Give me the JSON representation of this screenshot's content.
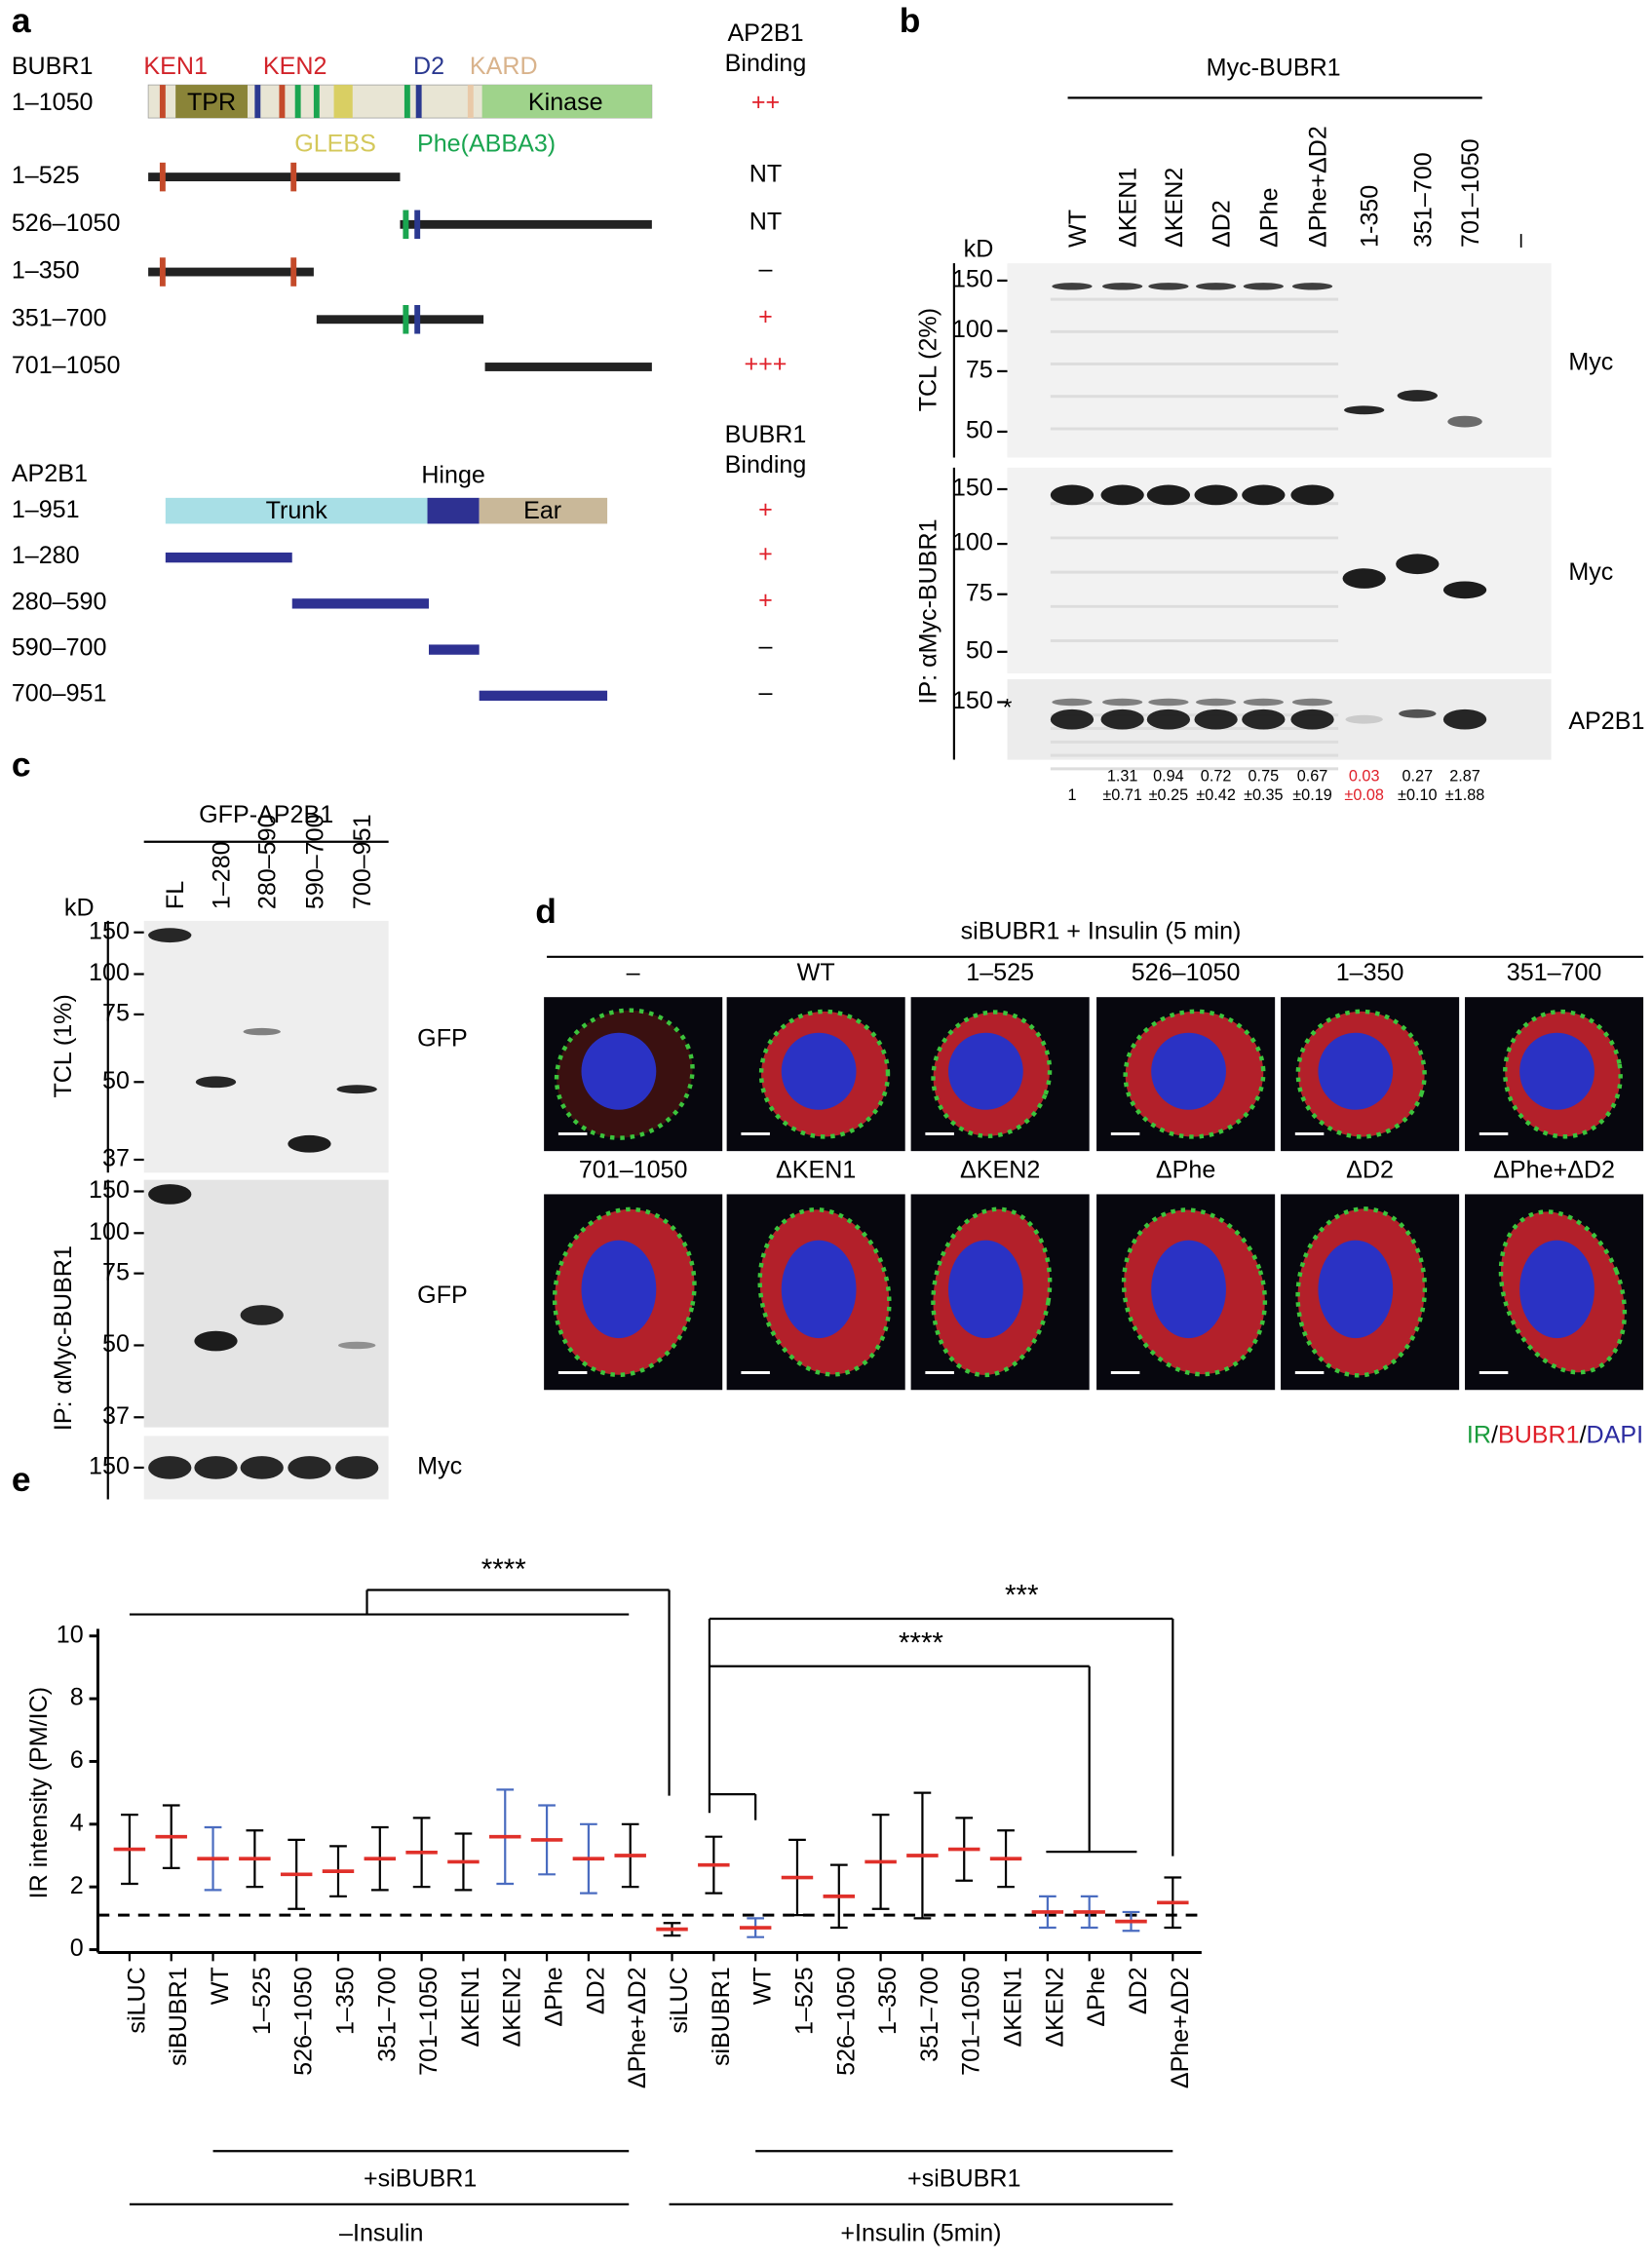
{
  "panel_a": {
    "label": "a",
    "bubr1": {
      "name": "BUBR1",
      "range": "1–1050",
      "domains": [
        "KEN1",
        "KEN2",
        "D2",
        "KARD",
        "TPR",
        "Kinase",
        "GLEBS",
        "Phe(ABBA3)"
      ],
      "binding_header": [
        "AP2B1",
        "Binding"
      ],
      "binding": "++",
      "fragments": [
        {
          "label": "1–525",
          "binding": "NT"
        },
        {
          "label": "526–1050",
          "binding": "NT"
        },
        {
          "label": "1–350",
          "binding": "–"
        },
        {
          "label": "351–700",
          "binding": "+"
        },
        {
          "label": "701–1050",
          "binding": "+++"
        }
      ]
    },
    "ap2b1": {
      "name": "AP2B1",
      "range": "1–951",
      "domains": [
        "Trunk",
        "Hinge",
        "Ear"
      ],
      "binding_header": [
        "BUBR1",
        "Binding"
      ],
      "binding": "+",
      "fragments": [
        {
          "label": "1–280",
          "binding": "+"
        },
        {
          "label": "280–590",
          "binding": "+"
        },
        {
          "label": "590–700",
          "binding": "–"
        },
        {
          "label": "700–951",
          "binding": "–"
        }
      ]
    }
  },
  "panel_b": {
    "label": "b",
    "construct": "Myc-BUBR1",
    "kd": "kD",
    "lanes": [
      "WT",
      "ΔKEN1",
      "ΔKEN2",
      "ΔD2",
      "ΔPhe",
      "ΔPhe+ΔD2",
      "1-350",
      "351–700",
      "701–1050",
      "–"
    ],
    "blots": [
      {
        "markers": [
          150,
          100,
          75,
          50
        ],
        "antibody": "Myc"
      },
      {
        "markers": [
          150,
          100,
          75,
          50
        ],
        "antibody": "Myc"
      },
      {
        "markers": [
          150
        ],
        "antibody": "AP2B1"
      }
    ],
    "sides": [
      "TCL (2%)",
      "IP: αMyc-BUBR1"
    ],
    "asterisk": "*",
    "quant": [
      [
        "1"
      ],
      [
        "1.31",
        "±0.71"
      ],
      [
        "0.94",
        "±0.25"
      ],
      [
        "0.72",
        "±0.42"
      ],
      [
        "0.75",
        "±0.35"
      ],
      [
        "0.67",
        "±0.19"
      ],
      [
        "0.03",
        "±0.08"
      ],
      [
        "0.27",
        "±0.10"
      ],
      [
        "2.87",
        "±1.88"
      ]
    ]
  },
  "panel_c": {
    "label": "c",
    "construct": "GFP-AP2B1",
    "kd": "kD",
    "lanes": [
      "FL",
      "1–280",
      "280–590",
      "590–700",
      "700–951"
    ],
    "blots": [
      {
        "markers": [
          150,
          100,
          75,
          50,
          37
        ],
        "antibody": "GFP"
      },
      {
        "markers": [
          150,
          100,
          75,
          50,
          37
        ],
        "antibody": "GFP"
      },
      {
        "markers": [
          150
        ],
        "antibody": "Myc"
      }
    ],
    "sides": [
      "TCL (1%)",
      "IP: αMyc-BUBR1"
    ]
  },
  "panel_d": {
    "label": "d",
    "header": "siBUBR1 + Insulin (5 min)",
    "rows": [
      [
        "–",
        "WT",
        "1–525",
        "526–1050",
        "1–350",
        "351–700"
      ],
      [
        "701–1050",
        "ΔKEN1",
        "ΔKEN2",
        "ΔPhe",
        "ΔD2",
        "ΔPhe+ΔD2"
      ]
    ],
    "legend": [
      "IR",
      "/",
      "BUBR1",
      "/",
      "DAPI"
    ],
    "legend_colors": [
      "#1a9c3c",
      "#000000",
      "#e0202a",
      "#000000",
      "#2b2ba0"
    ]
  },
  "chart_data": {
    "type": "dotplot",
    "label": "e",
    "ylabel": "IR intensity (PM/IC)",
    "categories": [
      "siLUC",
      "siBUBR1",
      "WT",
      "1–525",
      "526–1050",
      "1–350",
      "351–700",
      "701–1050",
      "ΔKEN1",
      "ΔKEN2",
      "ΔPhe",
      "ΔD2",
      "ΔPhe+ΔD2",
      "siLUC",
      "siBUBR1",
      "WT",
      "1–525",
      "526–1050",
      "1–350",
      "351–700",
      "701–1050",
      "ΔKEN1",
      "ΔKEN2",
      "ΔPhe",
      "ΔD2",
      "ΔPhe+ΔD2"
    ],
    "values": [
      3.2,
      3.6,
      2.9,
      2.9,
      2.4,
      2.5,
      2.9,
      3.1,
      2.8,
      3.6,
      3.5,
      2.9,
      3.0,
      0.65,
      2.7,
      0.7,
      2.3,
      1.7,
      2.8,
      3.0,
      3.2,
      2.9,
      1.2,
      1.2,
      0.9,
      1.5
    ],
    "errors": [
      1.1,
      1.0,
      1.0,
      0.9,
      1.1,
      0.8,
      1.0,
      1.1,
      0.9,
      1.5,
      1.1,
      1.1,
      1.0,
      0.2,
      0.9,
      0.3,
      1.2,
      1.0,
      1.5,
      2.0,
      1.0,
      0.9,
      0.5,
      0.5,
      0.3,
      0.8
    ],
    "colors": [
      "#000000",
      "#000000",
      "#4a6cc0",
      "#000000",
      "#000000",
      "#000000",
      "#000000",
      "#000000",
      "#000000",
      "#4a6cc0",
      "#4a6cc0",
      "#4a6cc0",
      "#000000",
      "#000000",
      "#000000",
      "#4a6cc0",
      "#000000",
      "#000000",
      "#000000",
      "#000000",
      "#000000",
      "#000000",
      "#4a6cc0",
      "#4a6cc0",
      "#4a6cc0",
      "#000000"
    ],
    "mean_color": "#e0302a",
    "reference_line": 1.1,
    "ylim": [
      0,
      10
    ],
    "yticks": [
      0,
      2,
      4,
      6,
      8,
      10
    ],
    "annotations": [
      "****",
      "****",
      "***"
    ],
    "groups": [
      "+siBUBR1",
      "–Insulin",
      "+siBUBR1",
      "+Insulin (5min)"
    ]
  }
}
